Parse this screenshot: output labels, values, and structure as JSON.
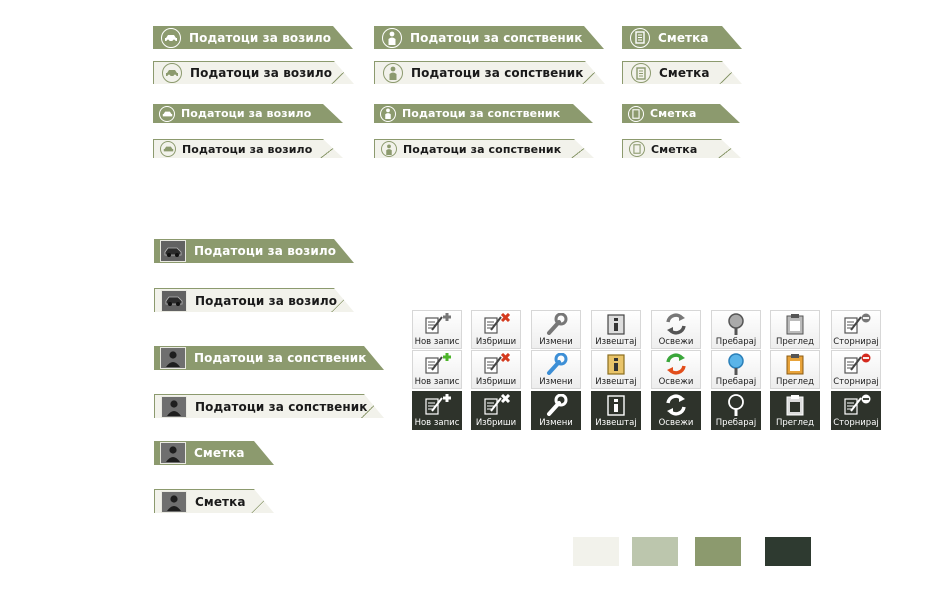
{
  "tabs": {
    "vehicle_label": "Податоци за возило",
    "owner_label": "Податоци за сопственик",
    "invoice_label": "Сметка"
  },
  "actions": {
    "new_record": "Нов запис",
    "delete": "Избриши",
    "edit": "Измени",
    "report": "Извештај",
    "refresh": "Освежи",
    "search": "Пребарај",
    "preview": "Преглед",
    "cancel": "Сторнирај"
  },
  "palette": {
    "colors": [
      "#f2f2eb",
      "#bcc6ad",
      "#8c9a6e",
      "#2e3a30"
    ]
  },
  "icons": {
    "vehicle": "car-icon",
    "owner": "person-icon",
    "invoice": "document-icon",
    "new_record": "new-record-icon",
    "delete": "delete-icon",
    "edit": "wrench-icon",
    "report": "report-icon",
    "refresh": "refresh-icon",
    "search": "magnifier-icon",
    "preview": "clipboard-icon",
    "cancel": "cancel-icon"
  }
}
